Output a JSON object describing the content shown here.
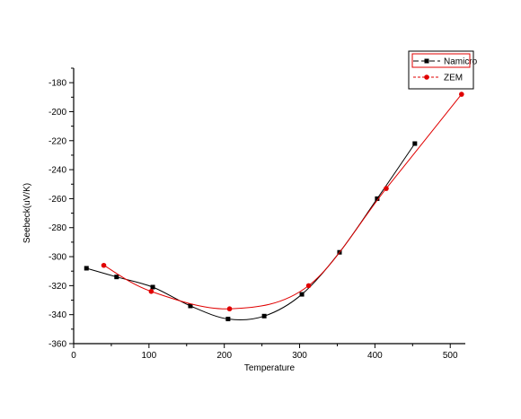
{
  "chart_data": {
    "type": "line",
    "title": "",
    "xlabel": "Temperature",
    "ylabel": "Seebeck(uV/K)",
    "xlim": [
      0,
      520
    ],
    "ylim": [
      -360,
      -170
    ],
    "x_ticks": [
      0,
      100,
      200,
      300,
      400,
      500
    ],
    "y_ticks": [
      -180,
      -200,
      -220,
      -240,
      -260,
      -280,
      -300,
      -320,
      -340,
      -360
    ],
    "grid": false,
    "legend_position": "top-right",
    "series": [
      {
        "name": "Namicro",
        "color": "#000000",
        "marker": "square",
        "points": [
          {
            "x": 17,
            "y": -308
          },
          {
            "x": 57,
            "y": -314
          },
          {
            "x": 105,
            "y": -321
          },
          {
            "x": 155,
            "y": -334
          },
          {
            "x": 205,
            "y": -343
          },
          {
            "x": 253,
            "y": -341
          },
          {
            "x": 303,
            "y": -326
          },
          {
            "x": 353,
            "y": -297
          },
          {
            "x": 403,
            "y": -260
          },
          {
            "x": 453,
            "y": -222
          }
        ]
      },
      {
        "name": "ZEM",
        "color": "#e00000",
        "marker": "circle",
        "points": [
          {
            "x": 40,
            "y": -306
          },
          {
            "x": 103,
            "y": -324
          },
          {
            "x": 207,
            "y": -336
          },
          {
            "x": 312,
            "y": -320
          },
          {
            "x": 415,
            "y": -253
          },
          {
            "x": 515,
            "y": -188
          }
        ]
      }
    ]
  }
}
